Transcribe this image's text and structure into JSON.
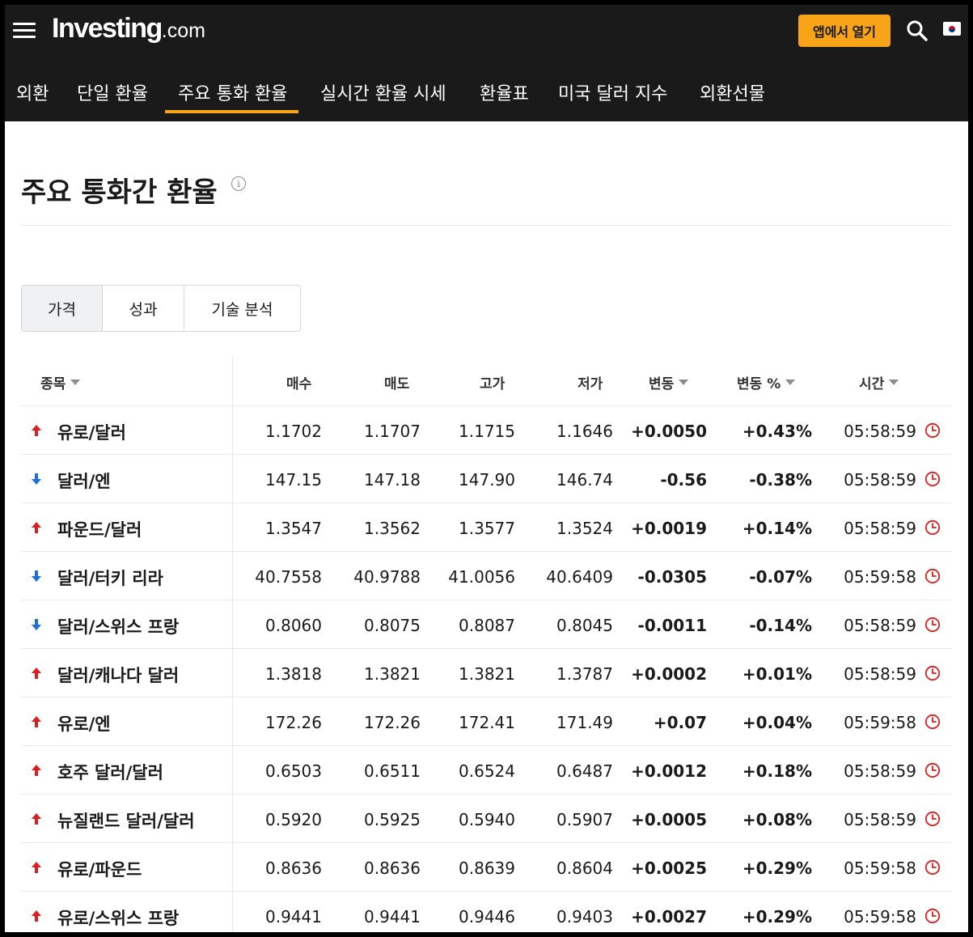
{
  "header": {
    "logo_main": "Investing",
    "logo_suffix": ".com",
    "app_button": "앱에서 열기",
    "icons": [
      "hamburger-icon",
      "search-icon",
      "flag-icon"
    ]
  },
  "subnav": {
    "tabs": [
      "외환",
      "단일 환율",
      "주요 통화 환율",
      "실시간 환율 시세",
      "환율표",
      "미국 달러 지수",
      "외환선물"
    ],
    "active": "주요 통화 환율"
  },
  "page": {
    "title": "주요 통화간 환율",
    "info": "i"
  },
  "view_tabs": {
    "items": [
      "가격",
      "성과",
      "기술 분석"
    ],
    "active": "가격"
  },
  "table": {
    "headers": {
      "name": "종목",
      "bid": "매수",
      "ask": "매도",
      "high": "고가",
      "low": "저가",
      "change": "변동",
      "change_pct": "변동 %",
      "time": "시간"
    },
    "rows": [
      {
        "name": "유로/달러",
        "bid": "1.1702",
        "ask": "1.1707",
        "high": "1.1715",
        "low": "1.1646",
        "change": "+0.0050",
        "change_pct": "+0.43%",
        "time": "05:58:59",
        "direction": "up"
      },
      {
        "name": "달러/엔",
        "bid": "147.15",
        "ask": "147.18",
        "high": "147.90",
        "low": "146.74",
        "change": "-0.56",
        "change_pct": "-0.38%",
        "time": "05:58:59",
        "direction": "down"
      },
      {
        "name": "파운드/달러",
        "bid": "1.3547",
        "ask": "1.3562",
        "high": "1.3577",
        "low": "1.3524",
        "change": "+0.0019",
        "change_pct": "+0.14%",
        "time": "05:58:59",
        "direction": "up"
      },
      {
        "name": "달러/터키 리라",
        "bid": "40.7558",
        "ask": "40.9788",
        "high": "41.0056",
        "low": "40.6409",
        "change": "-0.0305",
        "change_pct": "-0.07%",
        "time": "05:59:58",
        "direction": "down"
      },
      {
        "name": "달러/스위스 프랑",
        "bid": "0.8060",
        "ask": "0.8075",
        "high": "0.8087",
        "low": "0.8045",
        "change": "-0.0011",
        "change_pct": "-0.14%",
        "time": "05:58:59",
        "direction": "down"
      },
      {
        "name": "달러/캐나다 달러",
        "bid": "1.3818",
        "ask": "1.3821",
        "high": "1.3821",
        "low": "1.3787",
        "change": "+0.0002",
        "change_pct": "+0.01%",
        "time": "05:58:59",
        "direction": "up"
      },
      {
        "name": "유로/엔",
        "bid": "172.26",
        "ask": "172.26",
        "high": "172.41",
        "low": "171.49",
        "change": "+0.07",
        "change_pct": "+0.04%",
        "time": "05:59:58",
        "direction": "up"
      },
      {
        "name": "호주 달러/달러",
        "bid": "0.6503",
        "ask": "0.6511",
        "high": "0.6524",
        "low": "0.6487",
        "change": "+0.0012",
        "change_pct": "+0.18%",
        "time": "05:58:59",
        "direction": "up"
      },
      {
        "name": "뉴질랜드 달러/달러",
        "bid": "0.5920",
        "ask": "0.5925",
        "high": "0.5940",
        "low": "0.5907",
        "change": "+0.0005",
        "change_pct": "+0.08%",
        "time": "05:58:59",
        "direction": "up"
      },
      {
        "name": "유로/파운드",
        "bid": "0.8636",
        "ask": "0.8636",
        "high": "0.8639",
        "low": "0.8604",
        "change": "+0.0025",
        "change_pct": "+0.29%",
        "time": "05:59:58",
        "direction": "up"
      },
      {
        "name": "유로/스위스 프랑",
        "bid": "0.9441",
        "ask": "0.9441",
        "high": "0.9446",
        "low": "0.9403",
        "change": "+0.0027",
        "change_pct": "+0.29%",
        "time": "05:59:58",
        "direction": "up"
      }
    ]
  },
  "colors": {
    "up": "#dd1e1e",
    "down": "#1e6fdc",
    "accent": "#f7a418",
    "header_bg": "#1a1a1a"
  }
}
